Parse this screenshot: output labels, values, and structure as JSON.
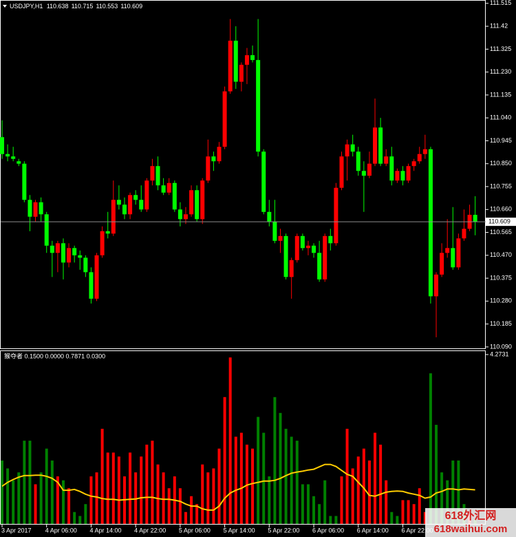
{
  "chart_data": [
    {
      "type": "candlestick",
      "title": "USDJPY,H1",
      "up_color": "#ff0000",
      "down_color": "#00ff00",
      "ylim": [
        110.084,
        111.526
      ],
      "yticks": [
        111.515,
        111.42,
        111.325,
        {
          "value": 111.23,
          "label": "111.230"
        },
        111.135,
        {
          "value": 111.04,
          "label": "111.040"
        },
        110.945,
        {
          "value": 110.85,
          "label": "110.850"
        },
        110.755,
        {
          "value": 110.66,
          "label": "110.660"
        },
        110.565,
        {
          "value": 110.47,
          "label": "110.470"
        },
        110.375,
        {
          "value": 110.28,
          "label": "110.280"
        },
        110.185,
        {
          "value": 110.09,
          "label": "110.090"
        }
      ],
      "categories": [
        "3 Apr 2017",
        null,
        null,
        null,
        null,
        null,
        null,
        null,
        "4 Apr 06:00",
        null,
        null,
        null,
        null,
        null,
        null,
        null,
        "4 Apr 14:00",
        null,
        null,
        null,
        null,
        null,
        null,
        null,
        "4 Apr 22:00",
        null,
        null,
        null,
        null,
        null,
        null,
        null,
        "5 Apr 06:00",
        null,
        null,
        null,
        null,
        null,
        null,
        null,
        "5 Apr 14:00",
        null,
        null,
        null,
        null,
        null,
        null,
        null,
        "5 Apr 22:00",
        null,
        null,
        null,
        null,
        null,
        null,
        null,
        "6 Apr 06:00",
        null,
        null,
        null,
        null,
        null,
        null,
        null,
        "6 Apr 14:00",
        null,
        null,
        null,
        null,
        null,
        null,
        null,
        "6 Apr 22:00",
        null,
        null,
        null,
        null,
        null,
        null,
        null,
        null,
        null,
        null,
        null,
        null,
        null
      ],
      "ohlc": [
        [
          110.96,
          111.03,
          110.87,
          110.89
        ],
        [
          110.89,
          110.93,
          110.86,
          110.88
        ],
        [
          110.88,
          110.92,
          110.86,
          110.87
        ],
        [
          110.86,
          110.87,
          110.84,
          110.85
        ],
        [
          110.85,
          110.86,
          110.69,
          110.7
        ],
        [
          110.7,
          110.72,
          110.57,
          110.63
        ],
        [
          110.63,
          110.7,
          110.61,
          110.69
        ],
        [
          110.69,
          110.71,
          110.61,
          110.64
        ],
        [
          110.64,
          110.65,
          110.48,
          110.51
        ],
        [
          110.51,
          110.53,
          110.38,
          110.48
        ],
        [
          110.48,
          110.53,
          110.4,
          110.52
        ],
        [
          110.52,
          110.54,
          110.37,
          110.44
        ],
        [
          110.44,
          110.52,
          110.42,
          110.5
        ],
        [
          110.5,
          110.51,
          110.44,
          110.47
        ],
        [
          110.47,
          110.49,
          110.41,
          110.46
        ],
        [
          110.46,
          110.47,
          110.38,
          110.4
        ],
        [
          110.4,
          110.42,
          110.27,
          110.29
        ],
        [
          110.29,
          110.48,
          110.28,
          110.47
        ],
        [
          110.47,
          110.59,
          110.46,
          110.57
        ],
        [
          110.57,
          110.65,
          110.54,
          110.56
        ],
        [
          110.56,
          110.78,
          110.55,
          110.7
        ],
        [
          110.7,
          110.76,
          110.66,
          110.68
        ],
        [
          110.68,
          110.71,
          110.62,
          110.64
        ],
        [
          110.64,
          110.73,
          110.62,
          110.72
        ],
        [
          110.72,
          110.74,
          110.68,
          110.7
        ],
        [
          110.7,
          110.76,
          110.65,
          110.66
        ],
        [
          110.66,
          110.79,
          110.65,
          110.78
        ],
        [
          110.78,
          110.87,
          110.76,
          110.84
        ],
        [
          110.84,
          110.88,
          110.74,
          110.76
        ],
        [
          110.76,
          110.79,
          110.72,
          110.73
        ],
        [
          110.73,
          110.79,
          110.72,
          110.77
        ],
        [
          110.77,
          110.78,
          110.65,
          110.66
        ],
        [
          110.66,
          110.69,
          110.59,
          110.62
        ],
        [
          110.62,
          110.67,
          110.6,
          110.64
        ],
        [
          110.64,
          110.76,
          110.63,
          110.74
        ],
        [
          110.74,
          110.76,
          110.61,
          110.62
        ],
        [
          110.62,
          110.79,
          110.6,
          110.78
        ],
        [
          110.78,
          110.95,
          110.77,
          110.88
        ],
        [
          110.88,
          110.9,
          110.82,
          110.86
        ],
        [
          110.86,
          110.94,
          110.85,
          110.92
        ],
        [
          110.92,
          111.17,
          110.91,
          111.15
        ],
        [
          111.15,
          111.45,
          111.14,
          111.36
        ],
        [
          111.36,
          111.42,
          111.16,
          111.19
        ],
        [
          111.19,
          111.27,
          111.15,
          111.26
        ],
        [
          111.26,
          111.33,
          111.18,
          111.3
        ],
        [
          111.3,
          111.34,
          111.27,
          111.28
        ],
        [
          111.28,
          111.45,
          110.88,
          110.9
        ],
        [
          110.9,
          110.91,
          110.64,
          110.65
        ],
        [
          110.65,
          110.7,
          110.59,
          110.61
        ],
        [
          110.61,
          110.7,
          110.52,
          110.53
        ],
        [
          110.53,
          110.58,
          110.48,
          110.55
        ],
        [
          110.55,
          110.56,
          110.37,
          110.38
        ],
        [
          110.38,
          110.46,
          110.29,
          110.45
        ],
        [
          110.45,
          110.56,
          110.44,
          110.55
        ],
        [
          110.55,
          110.56,
          110.49,
          110.5
        ],
        [
          110.5,
          110.53,
          110.47,
          110.51
        ],
        [
          110.51,
          110.52,
          110.46,
          110.48
        ],
        [
          110.48,
          110.53,
          110.36,
          110.37
        ],
        [
          110.37,
          110.56,
          110.36,
          110.55
        ],
        [
          110.55,
          110.58,
          110.49,
          110.52
        ],
        [
          110.52,
          110.77,
          110.51,
          110.75
        ],
        [
          110.75,
          110.9,
          110.74,
          110.88
        ],
        [
          110.88,
          110.95,
          110.78,
          110.93
        ],
        [
          110.93,
          110.97,
          110.88,
          110.9
        ],
        [
          110.9,
          110.92,
          110.8,
          110.82
        ],
        [
          110.82,
          110.86,
          110.65,
          110.8
        ],
        [
          110.8,
          110.9,
          110.79,
          110.85
        ],
        [
          110.85,
          111.12,
          110.84,
          111.0
        ],
        [
          111.0,
          111.04,
          110.84,
          110.85
        ],
        [
          110.85,
          110.91,
          110.84,
          110.88
        ],
        [
          110.88,
          110.92,
          110.76,
          110.78
        ],
        [
          110.78,
          110.83,
          110.77,
          110.82
        ],
        [
          110.82,
          110.84,
          110.76,
          110.78
        ],
        [
          110.78,
          110.85,
          110.77,
          110.84
        ],
        [
          110.84,
          110.87,
          110.82,
          110.86
        ],
        [
          110.86,
          110.92,
          110.85,
          110.89
        ],
        [
          110.89,
          110.97,
          110.87,
          110.91
        ],
        [
          110.91,
          110.92,
          110.27,
          110.3
        ],
        [
          110.3,
          110.4,
          110.13,
          110.39
        ],
        [
          110.39,
          110.52,
          110.38,
          110.48
        ],
        [
          110.48,
          110.62,
          110.46,
          110.5
        ],
        [
          110.5,
          110.67,
          110.41,
          110.42
        ],
        [
          110.42,
          110.56,
          110.41,
          110.54
        ],
        [
          110.54,
          110.66,
          110.53,
          110.58
        ],
        [
          110.58,
          110.68,
          110.57,
          110.638
        ],
        [
          110.638,
          110.715,
          110.553,
          110.609
        ]
      ],
      "watermark": [
        "618外汇网",
        "618waihui.com"
      ]
    },
    {
      "type": "bar",
      "title": "猴夺者 0.1500 0.0000 0.7871 0.0300",
      "ylim": [
        0,
        4.36
      ],
      "yticks": [
        4.2731
      ],
      "values": [
        1.6,
        1.4,
        1.1,
        1.3,
        2.1,
        2.1,
        1.0,
        1.3,
        1.9,
        1.6,
        1.2,
        1.1,
        0.9,
        0.3,
        0.2,
        0.5,
        1.2,
        1.3,
        2.4,
        1.8,
        1.8,
        1.7,
        1.2,
        1.8,
        1.3,
        1.7,
        2.0,
        2.1,
        1.5,
        1.3,
        0.9,
        1.2,
        0.9,
        0.3,
        0.7,
        0.5,
        1.5,
        1.3,
        1.4,
        1.9,
        3.2,
        4.2,
        2.2,
        2.3,
        2.0,
        1.9,
        2.7,
        2.3,
        1.2,
        3.2,
        2.8,
        2.4,
        2.2,
        2.1,
        1.0,
        1.0,
        0.7,
        0.5,
        1.1,
        0.2,
        0.2,
        1.2,
        2.4,
        1.4,
        1.7,
        1.9,
        1.6,
        2.3,
        2.0,
        1.1,
        0.3,
        0.2,
        0.6,
        0.6,
        0.5,
        0.9,
        0.3,
        3.8,
        2.5,
        1.3,
        1.1,
        1.6,
        1.6,
        0.5,
        0.3,
        0.1
      ],
      "colors": [
        "green",
        "green",
        "green",
        "green",
        "green",
        "green",
        "red",
        "green",
        "green",
        "green",
        "red",
        "green",
        "red",
        "green",
        "green",
        "green",
        "red",
        "red",
        "red",
        "red",
        "red",
        "red",
        "red",
        "red",
        "red",
        "red",
        "red",
        "red",
        "red",
        "red",
        "red",
        "red",
        "red",
        "red",
        "red",
        "red",
        "red",
        "red",
        "red",
        "red",
        "red",
        "red",
        "red",
        "red",
        "red",
        "red",
        "green",
        "green",
        "green",
        "green",
        "green",
        "green",
        "green",
        "green",
        "green",
        "green",
        "green",
        "green",
        "green",
        "green",
        "green",
        "red",
        "red",
        "red",
        "red",
        "red",
        "red",
        "red",
        "red",
        "red",
        "green",
        "green",
        "red",
        "red",
        "red",
        "red",
        "red",
        "green",
        "green",
        "green",
        "green",
        "green",
        "green",
        "green",
        "red",
        "green"
      ],
      "line": {
        "color": "#ffcc00",
        "values": [
          0.95,
          1.05,
          1.12,
          1.18,
          1.22,
          1.22,
          1.23,
          1.23,
          1.2,
          1.15,
          1.05,
          0.85,
          0.85,
          0.87,
          0.82,
          0.75,
          0.7,
          0.68,
          0.64,
          0.62,
          0.62,
          0.6,
          0.61,
          0.62,
          0.63,
          0.66,
          0.67,
          0.67,
          0.64,
          0.62,
          0.62,
          0.6,
          0.57,
          0.5,
          0.45,
          0.45,
          0.38,
          0.35,
          0.35,
          0.45,
          0.65,
          0.78,
          0.85,
          0.9,
          0.98,
          1.02,
          1.05,
          1.08,
          1.08,
          1.1,
          1.15,
          1.22,
          1.28,
          1.31,
          1.33,
          1.36,
          1.38,
          1.44,
          1.5,
          1.5,
          1.45,
          1.35,
          1.25,
          1.2,
          1.05,
          0.9,
          0.72,
          0.7,
          0.75,
          0.8,
          0.82,
          0.83,
          0.82,
          0.78,
          0.75,
          0.72,
          0.65,
          0.68,
          0.78,
          0.82,
          0.88,
          0.88,
          0.86,
          0.88,
          0.87,
          0.86
        ]
      }
    }
  ]
}
